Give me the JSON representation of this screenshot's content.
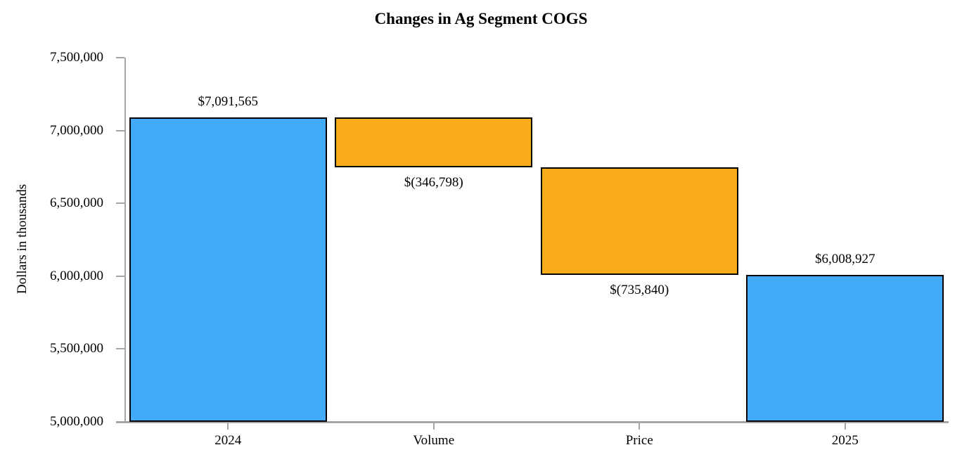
{
  "chart_data": {
    "type": "waterfall",
    "title": "Changes in Ag Segment COGS",
    "ylabel": "Dollars in thousands",
    "xlabel": "",
    "ylim": [
      5000000,
      7500000
    ],
    "ytick_step": 500000,
    "ytick_labels": [
      "5,000,000",
      "5,500,000",
      "6,000,000",
      "6,500,000",
      "7,000,000",
      "7,500,000"
    ],
    "categories": [
      "2024",
      "Volume",
      "Price",
      "2025"
    ],
    "bars": [
      {
        "category": "2024",
        "kind": "total",
        "start": 5000000,
        "end": 7091565,
        "value": 7091565,
        "label": "$7,091,565",
        "label_position": "above",
        "color": "#41AAFB"
      },
      {
        "category": "Volume",
        "kind": "decrease",
        "start": 7091565,
        "end": 6744767,
        "value": -346798,
        "label": "$(346,798)",
        "label_position": "below",
        "color": "#F9AC1B"
      },
      {
        "category": "Price",
        "kind": "decrease",
        "start": 6744767,
        "end": 6008927,
        "value": -735840,
        "label": "$(735,840)",
        "label_position": "below",
        "color": "#F9AC1B"
      },
      {
        "category": "2025",
        "kind": "total",
        "start": 5000000,
        "end": 6008927,
        "value": 6008927,
        "label": "$6,008,927",
        "label_position": "above",
        "color": "#41AAFB"
      }
    ],
    "colors": {
      "total": "#41AAFB",
      "change": "#F9AC1B",
      "bar_border": "#000000",
      "axis": "#A6A6A6",
      "text": "#000000"
    },
    "grid": false,
    "legend": "none"
  }
}
